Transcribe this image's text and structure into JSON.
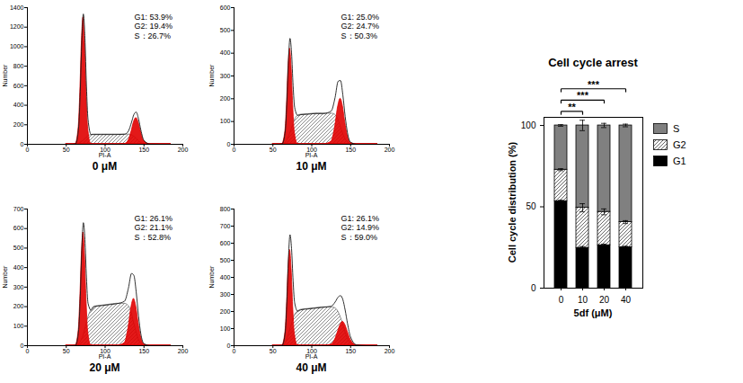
{
  "chart_data": [
    {
      "type": "area",
      "title": "0 μM",
      "xlabel": "PI-A",
      "ylabel": "Number",
      "xlim": [
        0,
        200
      ],
      "xticks": [
        0,
        50,
        100,
        150,
        200
      ],
      "ylim": [
        0,
        1400
      ],
      "yticks": [
        0,
        200,
        400,
        600,
        800,
        1000,
        1200,
        1400
      ],
      "x": [
        50,
        58,
        62,
        66,
        68,
        70,
        72,
        74,
        76,
        78,
        82,
        86,
        95,
        105,
        115,
        125,
        130,
        134,
        137,
        140,
        143,
        146,
        150,
        158,
        170,
        185
      ],
      "series": [
        {
          "name": "S",
          "type": "area",
          "color": "#6e6e6e",
          "line_style": "hatched",
          "values": [
            0,
            0,
            0,
            5,
            15,
            25,
            35,
            50,
            65,
            80,
            95,
            100,
            100,
            100,
            100,
            100,
            100,
            95,
            80,
            60,
            35,
            15,
            3,
            0,
            0,
            0
          ]
        },
        {
          "name": "G1",
          "type": "area",
          "color": "#e00000",
          "values": [
            0,
            0,
            5,
            176,
            529,
            1040,
            1300,
            1040,
            529,
            176,
            5,
            0,
            0,
            0,
            0,
            0,
            0,
            0,
            0,
            0,
            0,
            0,
            0,
            0,
            0,
            0
          ]
        },
        {
          "name": "G2",
          "type": "area",
          "color": "#e00000",
          "values": [
            0,
            0,
            0,
            0,
            0,
            0,
            0,
            0,
            0,
            0,
            0,
            0,
            0,
            0,
            0,
            3,
            36,
            131,
            225,
            270,
            225,
            131,
            36,
            1,
            0,
            0
          ]
        },
        {
          "type": "line",
          "color": "#1a1a1a",
          "values": [
            0,
            0,
            5,
            181,
            544,
            1065,
            1335,
            1090,
            594,
            256,
            100,
            100,
            100,
            100,
            100,
            103,
            136,
            226,
            305,
            330,
            260,
            146,
            39,
            1,
            0,
            0
          ]
        }
      ],
      "annotations": [
        "G1: 53.9%",
        "G2: 19.4%",
        "S：26.7%"
      ]
    },
    {
      "type": "area",
      "title": "10 μM",
      "xlabel": "PI-A",
      "ylabel": "Number",
      "xlim": [
        0,
        200
      ],
      "xticks": [
        0,
        50,
        100,
        150,
        200
      ],
      "ylim": [
        0,
        600
      ],
      "yticks": [
        0,
        100,
        200,
        300,
        400,
        500,
        600
      ],
      "x": [
        50,
        58,
        62,
        66,
        68,
        70,
        72,
        74,
        76,
        78,
        82,
        86,
        95,
        105,
        115,
        125,
        130,
        134,
        137,
        140,
        143,
        146,
        150,
        158,
        170,
        185
      ],
      "series": [
        {
          "name": "S",
          "type": "area",
          "color": "#6e6e6e",
          "line_style": "hatched",
          "values": [
            0,
            0,
            0,
            5,
            15,
            30,
            45,
            65,
            85,
            105,
            125,
            130,
            132,
            135,
            135,
            135,
            130,
            110,
            80,
            50,
            25,
            10,
            2,
            0,
            0,
            0
          ]
        },
        {
          "name": "G1",
          "type": "area",
          "color": "#e00000",
          "values": [
            0,
            0,
            2,
            57,
            172,
            336,
            420,
            336,
            172,
            57,
            2,
            0,
            0,
            0,
            0,
            0,
            0,
            0,
            0,
            0,
            0,
            0,
            0,
            0,
            0,
            0
          ]
        },
        {
          "name": "G2",
          "type": "area",
          "color": "#e00000",
          "values": [
            0,
            0,
            0,
            0,
            0,
            0,
            0,
            0,
            0,
            0,
            0,
            0,
            0,
            0,
            0,
            11,
            75,
            167,
            200,
            167,
            97,
            40,
            7,
            0,
            0,
            0
          ]
        },
        {
          "type": "line",
          "color": "#1a1a1a",
          "values": [
            0,
            0,
            2,
            62,
            187,
            366,
            465,
            401,
            257,
            162,
            127,
            130,
            132,
            135,
            135,
            146,
            205,
            277,
            280,
            217,
            122,
            50,
            9,
            0,
            0,
            0
          ]
        }
      ],
      "annotations": [
        "G1: 25.0%",
        "G2: 24.7%",
        "S：50.3%"
      ]
    },
    {
      "type": "area",
      "title": "20 μM",
      "xlabel": "PI-A",
      "ylabel": "Number",
      "xlim": [
        0,
        200
      ],
      "xticks": [
        0,
        50,
        100,
        150,
        200
      ],
      "ylim": [
        0,
        700
      ],
      "yticks": [
        0,
        100,
        200,
        300,
        400,
        500,
        600,
        700
      ],
      "x": [
        50,
        58,
        62,
        66,
        68,
        70,
        72,
        74,
        76,
        78,
        82,
        86,
        95,
        105,
        115,
        125,
        130,
        134,
        137,
        140,
        143,
        146,
        150,
        158,
        170,
        185
      ],
      "series": [
        {
          "name": "S",
          "type": "area",
          "color": "#6e6e6e",
          "line_style": "hatched",
          "values": [
            0,
            0,
            0,
            5,
            15,
            30,
            50,
            80,
            110,
            140,
            180,
            200,
            205,
            210,
            215,
            215,
            205,
            170,
            120,
            75,
            35,
            12,
            2,
            0,
            0,
            0
          ]
        },
        {
          "name": "G1",
          "type": "area",
          "color": "#e00000",
          "values": [
            0,
            0,
            2,
            78,
            238,
            464,
            580,
            464,
            238,
            78,
            2,
            0,
            0,
            0,
            0,
            0,
            0,
            0,
            0,
            0,
            0,
            0,
            0,
            0,
            0,
            0
          ]
        },
        {
          "name": "G2",
          "type": "area",
          "color": "#e00000",
          "values": [
            0,
            0,
            0,
            0,
            0,
            0,
            0,
            0,
            0,
            0,
            0,
            0,
            0,
            0,
            0,
            13,
            90,
            200,
            240,
            200,
            117,
            48,
            8,
            0,
            0,
            0
          ]
        },
        {
          "type": "line",
          "color": "#1a1a1a",
          "values": [
            0,
            0,
            2,
            83,
            253,
            494,
            630,
            544,
            348,
            218,
            182,
            200,
            205,
            210,
            215,
            228,
            295,
            370,
            360,
            275,
            152,
            60,
            10,
            0,
            0,
            0
          ]
        }
      ],
      "annotations": [
        "G1: 26.1%",
        "G2: 21.1%",
        "S：52.8%"
      ]
    },
    {
      "type": "area",
      "title": "40 μM",
      "xlabel": "PI-A",
      "ylabel": "Number",
      "xlim": [
        0,
        200
      ],
      "xticks": [
        0,
        50,
        100,
        150,
        200
      ],
      "ylim": [
        0,
        800
      ],
      "yticks": [
        0,
        100,
        200,
        300,
        400,
        500,
        600,
        700,
        800
      ],
      "x": [
        50,
        58,
        62,
        66,
        68,
        70,
        72,
        74,
        76,
        78,
        82,
        86,
        95,
        105,
        115,
        125,
        130,
        134,
        137,
        140,
        143,
        146,
        150,
        158,
        170,
        185
      ],
      "series": [
        {
          "name": "S",
          "type": "area",
          "color": "#6e6e6e",
          "line_style": "hatched",
          "values": [
            0,
            0,
            0,
            10,
            30,
            60,
            90,
            120,
            150,
            175,
            200,
            210,
            215,
            220,
            225,
            225,
            220,
            200,
            170,
            130,
            85,
            45,
            15,
            2,
            0,
            0
          ]
        },
        {
          "name": "G1",
          "type": "area",
          "color": "#e00000",
          "values": [
            0,
            0,
            2,
            76,
            230,
            448,
            560,
            448,
            230,
            76,
            2,
            0,
            0,
            0,
            0,
            0,
            0,
            0,
            0,
            0,
            0,
            0,
            0,
            0,
            0,
            0
          ]
        },
        {
          "name": "G2",
          "type": "area",
          "color": "#e00000",
          "values": [
            0,
            0,
            0,
            0,
            0,
            0,
            0,
            0,
            0,
            0,
            0,
            0,
            0,
            0,
            0,
            6,
            35,
            85,
            123,
            140,
            123,
            85,
            35,
            2,
            0,
            0
          ]
        },
        {
          "type": "line",
          "color": "#1a1a1a",
          "values": [
            0,
            0,
            2,
            86,
            260,
            508,
            650,
            568,
            380,
            251,
            202,
            210,
            215,
            220,
            225,
            231,
            255,
            285,
            293,
            270,
            208,
            130,
            50,
            4,
            0,
            0
          ]
        }
      ],
      "annotations": [
        "G1: 26.1%",
        "G2: 14.9%",
        "S：59.0%"
      ]
    },
    {
      "type": "bar",
      "stacked": true,
      "title": "Cell cycle arrest",
      "xlabel": "5df (μM)",
      "ylabel": "Cell cycle distribution (%)",
      "categories": [
        "0",
        "10",
        "20",
        "40"
      ],
      "ylim": [
        0,
        105
      ],
      "yticks": [
        0,
        50,
        100
      ],
      "legend": "right",
      "series": [
        {
          "name": "G1",
          "color": "#000000",
          "values": [
            53.5,
            24.8,
            26.4,
            25.2
          ],
          "errors": [
            0.5,
            0.8,
            0.6,
            0.6
          ]
        },
        {
          "name": "G2",
          "color": "#404040",
          "line_style": "hatched",
          "values": [
            19.3,
            24.6,
            20.5,
            15.4
          ],
          "errors": [
            0.6,
            2.5,
            1.8,
            0.9
          ]
        },
        {
          "name": "S",
          "color": "#808080",
          "values": [
            27.2,
            50.6,
            53.1,
            59.4
          ],
          "errors": [
            0.5,
            3.2,
            1.3,
            0.8
          ]
        }
      ],
      "annotations": [
        {
          "from": "0",
          "to": "10",
          "label": "**"
        },
        {
          "from": "0",
          "to": "20",
          "label": "***"
        },
        {
          "from": "0",
          "to": "40",
          "label": "***"
        }
      ]
    }
  ]
}
